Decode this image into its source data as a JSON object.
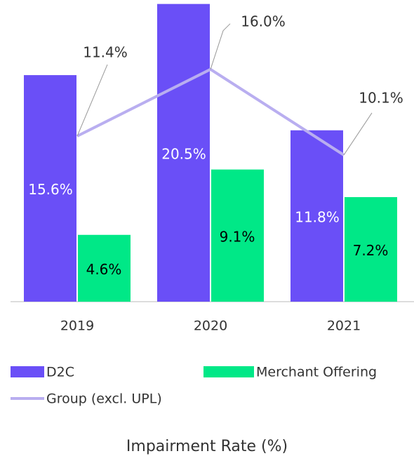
{
  "chart_data": {
    "type": "bar",
    "title": "Impairment Rate (%)",
    "categories": [
      "2019",
      "2020",
      "2021"
    ],
    "series": [
      {
        "name": "D2C",
        "type": "bar",
        "color": "#6a4ff7",
        "values": [
          15.6,
          20.5,
          11.8
        ],
        "value_labels": [
          "15.6%",
          "20.5%",
          "11.8%"
        ]
      },
      {
        "name": "Merchant Offering",
        "type": "bar",
        "color": "#00e887",
        "values": [
          4.6,
          9.1,
          7.2
        ],
        "value_labels": [
          "4.6%",
          "9.1%",
          "7.2%"
        ]
      },
      {
        "name": "Group (excl. UPL)",
        "type": "line",
        "color": "#b9aef0",
        "values": [
          11.4,
          16.0,
          10.1
        ],
        "value_labels": [
          "11.4%",
          "16.0%",
          "10.1%"
        ]
      }
    ]
  }
}
